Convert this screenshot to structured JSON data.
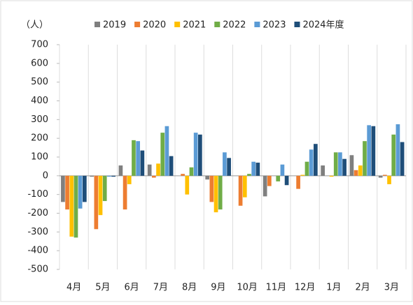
{
  "chart_data": {
    "type": "bar",
    "y_label": "（人）",
    "categories": [
      "4月",
      "5月",
      "6月",
      "7月",
      "8月",
      "9月",
      "10月",
      "11月",
      "12月",
      "1月",
      "2月",
      "3月"
    ],
    "series": [
      {
        "name": "2019",
        "color": "#7f7f7f",
        "values": [
          -140,
          -5,
          55,
          60,
          0,
          -20,
          0,
          -110,
          0,
          55,
          110,
          -10
        ]
      },
      {
        "name": "2020",
        "color": "#ed7d31",
        "values": [
          -180,
          -285,
          -180,
          -10,
          10,
          -140,
          -160,
          -55,
          -70,
          0,
          30,
          5
        ]
      },
      {
        "name": "2021",
        "color": "#ffc000",
        "values": [
          -325,
          -210,
          -45,
          65,
          -100,
          -195,
          -115,
          0,
          5,
          -5,
          55,
          -45
        ]
      },
      {
        "name": "2022",
        "color": "#70ad47",
        "values": [
          -330,
          -135,
          190,
          230,
          45,
          -180,
          10,
          -30,
          75,
          125,
          185,
          220
        ]
      },
      {
        "name": "2023",
        "color": "#5b9bd5",
        "values": [
          -175,
          -5,
          185,
          265,
          230,
          125,
          75,
          60,
          140,
          125,
          270,
          275
        ]
      },
      {
        "name": "2024年度",
        "color": "#1f4e79",
        "values": [
          -140,
          -5,
          135,
          105,
          220,
          95,
          70,
          -50,
          170,
          90,
          265,
          180
        ]
      }
    ],
    "ylim": [
      -500,
      700
    ],
    "yticks": [
      -500,
      -400,
      -300,
      -200,
      -100,
      0,
      100,
      200,
      300,
      400,
      500,
      600,
      700
    ]
  }
}
